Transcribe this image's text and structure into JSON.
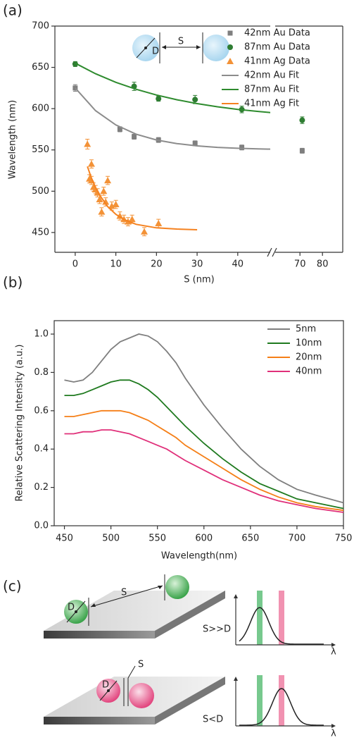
{
  "panel_labels": [
    "(a)",
    "(b)",
    "(c)"
  ],
  "chart_data": [
    {
      "type": "scatter",
      "x_label": "S (nm)",
      "y_label": "Wavelength (nm)",
      "inset_labels": [
        "D",
        "S"
      ],
      "xlim": [
        [
          -5,
          48
        ],
        [
          59,
          89
        ]
      ],
      "xticks": [
        0,
        10,
        20,
        30,
        40,
        70,
        80
      ],
      "ylim": [
        426,
        700
      ],
      "yticks": [
        450,
        500,
        550,
        600,
        650,
        700
      ],
      "legend": "upper right",
      "series": [
        {
          "name": "42nm Au Data",
          "color": "#7f7f7f",
          "marker": "square",
          "mode": "markers",
          "x": [
            0,
            11,
            14.5,
            20.5,
            29.5,
            41,
            71
          ],
          "values": [
            625,
            575,
            566,
            562,
            558,
            553,
            549
          ],
          "errors": [
            4,
            3,
            3,
            3,
            3,
            3,
            3
          ]
        },
        {
          "name": "87nm Au Data",
          "color": "#2e7d32",
          "marker": "circle",
          "mode": "markers",
          "x": [
            0,
            14.5,
            20.5,
            29.5,
            41,
            71
          ],
          "values": [
            654,
            627,
            612,
            611,
            599,
            586
          ],
          "errors": [
            3,
            5,
            3,
            5,
            4,
            4
          ]
        },
        {
          "name": "41nm Ag Data",
          "color": "#f39237",
          "marker": "triangle",
          "mode": "markers",
          "x": [
            3,
            4,
            3.5,
            4,
            4.5,
            5,
            5.5,
            6,
            6.5,
            7,
            7.5,
            8,
            9,
            10,
            11,
            12,
            13,
            14,
            17,
            20.5
          ],
          "values": [
            557,
            533,
            515,
            513,
            505,
            502,
            498,
            490,
            475,
            500,
            487,
            513,
            482,
            484,
            470,
            466,
            463,
            466,
            451,
            461
          ],
          "errors": [
            6,
            5,
            5,
            5,
            5,
            5,
            5,
            5,
            5,
            5,
            5,
            5,
            5,
            5,
            5,
            5,
            5,
            5,
            5,
            5
          ]
        },
        {
          "name": "42nm Au Fit",
          "color": "#8c8c8c",
          "mode": "line",
          "x": [
            0,
            5,
            10,
            15,
            20,
            25,
            30,
            35,
            40,
            45,
            48
          ],
          "values": [
            625,
            597.6,
            580.2,
            569.1,
            562.1,
            557.7,
            554.9,
            553.1,
            552.0,
            551.2,
            551
          ]
        },
        {
          "name": "87nm Au Fit",
          "color": "#2e8b2e",
          "mode": "line",
          "x": [
            0,
            5,
            10,
            15,
            20,
            25,
            30,
            35,
            40,
            45,
            48
          ],
          "values": [
            655,
            642.3,
            631.9,
            623.4,
            616.5,
            610.8,
            606.1,
            602.3,
            599.1,
            596.6,
            595.3
          ]
        },
        {
          "name": "41nm Ag Fit",
          "color": "#f58220",
          "mode": "line",
          "x": [
            3,
            4,
            5,
            6,
            8,
            10,
            12,
            15,
            20,
            25,
            30
          ],
          "values": [
            530,
            515.7,
            504.6,
            495.4,
            481.3,
            472,
            465.6,
            459.9,
            455.6,
            454.2,
            453.3
          ]
        }
      ]
    },
    {
      "type": "line",
      "x_label": "Wavelength(nm)",
      "y_label": "Relative Scattering Intensity (a.u.)",
      "xlim": [
        439,
        750
      ],
      "xticks": [
        450,
        500,
        550,
        600,
        650,
        700,
        750
      ],
      "ylim": [
        0,
        1.07
      ],
      "yticks": [
        {
          "value": 0,
          "label": "0.0"
        },
        0.2,
        0.4,
        0.6,
        0.8,
        {
          "value": 1,
          "label": "1.0"
        }
      ],
      "legend": "upper right",
      "x": [
        450,
        460,
        470,
        480,
        490,
        500,
        510,
        520,
        530,
        540,
        550,
        560,
        570,
        580,
        600,
        620,
        640,
        660,
        680,
        700,
        720,
        750
      ],
      "series": [
        {
          "name": "5nm",
          "color": "#7f7f7f",
          "values": [
            0.76,
            0.75,
            0.76,
            0.8,
            0.86,
            0.92,
            0.96,
            0.98,
            1.0,
            0.99,
            0.96,
            0.91,
            0.85,
            0.77,
            0.63,
            0.51,
            0.4,
            0.31,
            0.24,
            0.19,
            0.16,
            0.12
          ]
        },
        {
          "name": "10nm",
          "color": "#1f7a1f",
          "values": [
            0.68,
            0.68,
            0.69,
            0.71,
            0.73,
            0.75,
            0.76,
            0.76,
            0.74,
            0.71,
            0.67,
            0.62,
            0.57,
            0.52,
            0.43,
            0.35,
            0.28,
            0.22,
            0.18,
            0.14,
            0.12,
            0.09
          ]
        },
        {
          "name": "20nm",
          "color": "#f57f17",
          "values": [
            0.57,
            0.57,
            0.58,
            0.59,
            0.6,
            0.6,
            0.6,
            0.59,
            0.57,
            0.55,
            0.52,
            0.49,
            0.46,
            0.42,
            0.36,
            0.3,
            0.24,
            0.19,
            0.15,
            0.12,
            0.1,
            0.08
          ]
        },
        {
          "name": "40nm",
          "color": "#e0307a",
          "values": [
            0.48,
            0.48,
            0.49,
            0.49,
            0.5,
            0.5,
            0.49,
            0.48,
            0.46,
            0.44,
            0.42,
            0.4,
            0.37,
            0.34,
            0.29,
            0.24,
            0.2,
            0.16,
            0.13,
            0.11,
            0.09,
            0.07
          ]
        }
      ]
    }
  ],
  "diagram": {
    "top": {
      "d": "D",
      "s": "S",
      "condition": "S>>D",
      "axis": "λ"
    },
    "bottom": {
      "d": "D",
      "s": "S",
      "condition": "S<D",
      "axis": "λ"
    }
  }
}
